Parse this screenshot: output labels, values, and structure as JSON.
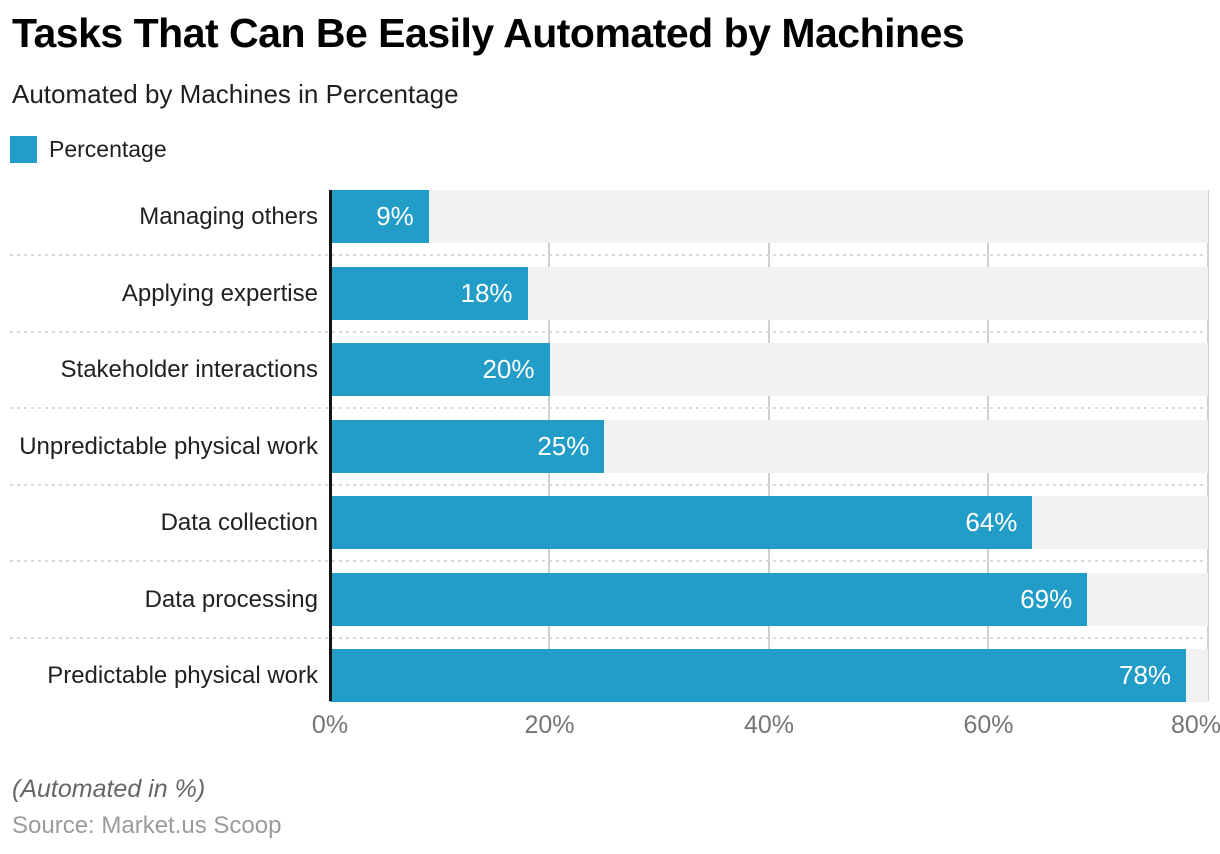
{
  "header": {
    "title": "Tasks That Can Be Easily Automated by Machines",
    "subtitle": "Automated by Machines in Percentage"
  },
  "legend": {
    "label": "Percentage",
    "color": "#219dc7"
  },
  "chart_data": {
    "type": "bar",
    "orientation": "horizontal",
    "title": "Tasks That Can Be Easily Automated by Machines",
    "subtitle": "Automated by Machines in Percentage",
    "series_name": "Percentage",
    "categories": [
      "Managing others",
      "Applying expertise",
      "Stakeholder interactions",
      "Unpredictable physical work",
      "Data collection",
      "Data processing",
      "Predictable physical work"
    ],
    "values": [
      9,
      18,
      20,
      25,
      64,
      69,
      78
    ],
    "value_suffix": "%",
    "xlabel": "",
    "ylabel": "",
    "xlim": [
      0,
      80
    ],
    "x_ticks": [
      {
        "label": "0%",
        "value": 0
      },
      {
        "label": "20%",
        "value": 20
      },
      {
        "label": "40%",
        "value": 40
      },
      {
        "label": "60%",
        "value": 60
      },
      {
        "label": "80%",
        "value": 80
      }
    ],
    "grid": true,
    "legend_position": "top-left",
    "bar_color": "#219dc7",
    "track_color": "#f2f2f2",
    "gridline_color": "#cfcfcf",
    "axis_color": "#141414"
  },
  "footer": {
    "note": "(Automated in %)",
    "source": "Source: Market.us Scoop"
  }
}
